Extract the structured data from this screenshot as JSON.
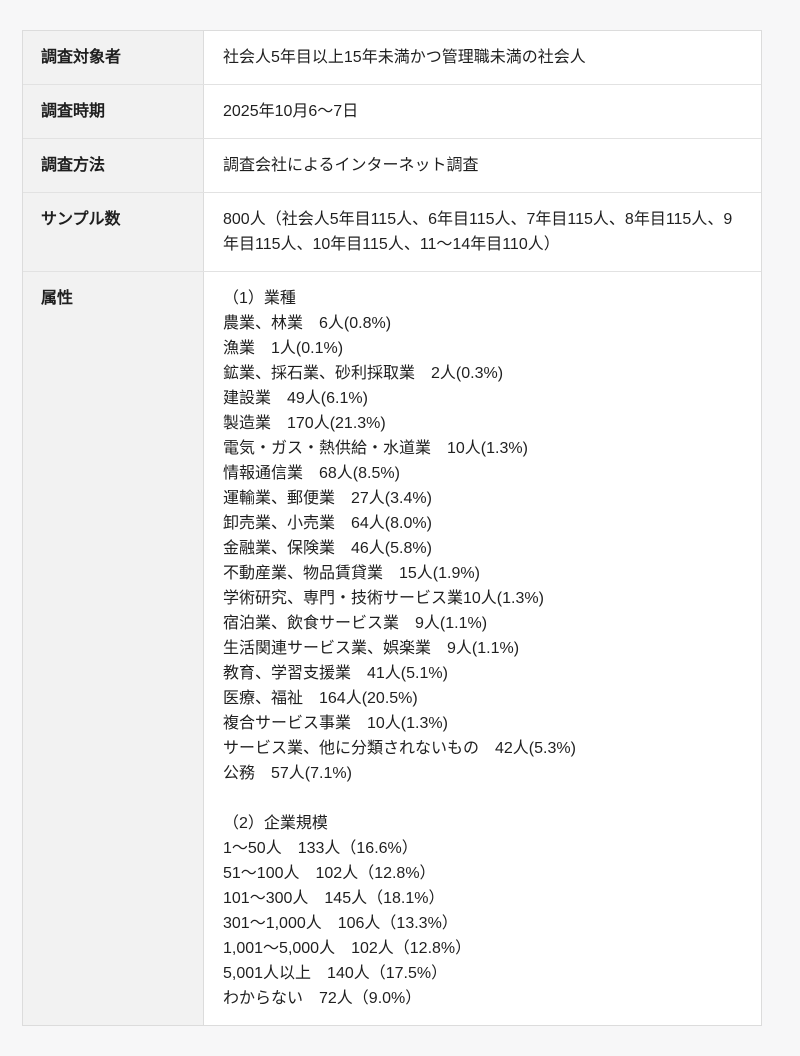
{
  "table": {
    "rows": [
      {
        "key": "survey-target",
        "label": "調査対象者",
        "value": "社会人5年目以上15年未満かつ管理職未満の社会人"
      },
      {
        "key": "survey-period",
        "label": "調査時期",
        "value": "2025年10月6〜7日"
      },
      {
        "key": "survey-method",
        "label": "調査方法",
        "value": "調査会社によるインターネット調査"
      },
      {
        "key": "sample-size",
        "label": "サンプル数",
        "value": "800人（社会人5年目115人、6年目115人、7年目115人、8年目115人、9年目115人、10年目115人、11〜14年目110人）"
      },
      {
        "key": "attributes",
        "label": "属性",
        "value_lines": [
          "（1）業種",
          "農業、林業　6人(0.8%)",
          "漁業　1人(0.1%)",
          "鉱業、採石業、砂利採取業　2人(0.3%)",
          "建設業　49人(6.1%)",
          "製造業　170人(21.3%)",
          "電気・ガス・熱供給・水道業　10人(1.3%)",
          "情報通信業　68人(8.5%)",
          "運輸業、郵便業　27人(3.4%)",
          "卸売業、小売業　64人(8.0%)",
          "金融業、保険業　46人(5.8%)",
          "不動産業、物品賃貸業　15人(1.9%)",
          "学術研究、専門・技術サービス業10人(1.3%)",
          "宿泊業、飲食サービス業　9人(1.1%)",
          "生活関連サービス業、娯楽業　9人(1.1%)",
          "教育、学習支援業　41人(5.1%)",
          "医療、福祉　164人(20.5%)",
          "複合サービス事業　10人(1.3%)",
          "サービス業、他に分類されないもの　42人(5.3%)",
          "公務　57人(7.1%)",
          "",
          "（2）企業規模",
          "1〜50人　133人（16.6%）",
          "51〜100人　102人（12.8%）",
          "101〜300人　145人（18.1%）",
          "301〜1,000人　106人（13.3%）",
          "1,001〜5,000人　102人（12.8%）",
          "5,001人以上　140人（17.5%）",
          "わからない　72人（9.0%）"
        ]
      }
    ]
  },
  "colors": {
    "page_background": "#f7f7f8",
    "label_cell_background": "#f2f2f2",
    "value_cell_background": "#ffffff",
    "border": "#dcdcdc",
    "text": "#1f1f1f"
  }
}
